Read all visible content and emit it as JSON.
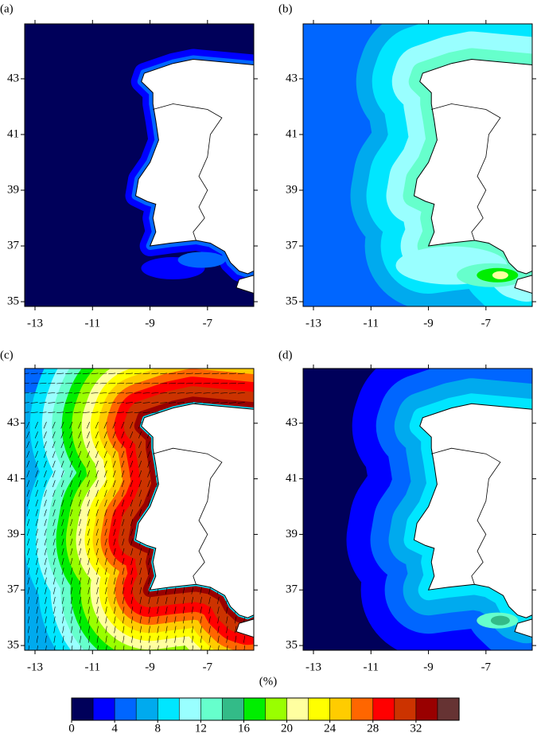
{
  "panels": [
    {
      "label": "(a)",
      "xlim": [
        -13.36,
        -5.39
      ],
      "ylim": [
        34.83,
        44.97
      ],
      "xticks": [
        -13,
        -11,
        -9,
        -7
      ],
      "yticks": [
        35,
        37,
        39,
        41,
        43
      ]
    },
    {
      "label": "(b)",
      "xlim": [
        -13.36,
        -5.39
      ],
      "ylim": [
        34.83,
        44.97
      ],
      "xticks": [
        -13,
        -11,
        -9,
        -7
      ],
      "yticks": [
        35,
        37,
        39,
        41,
        43
      ]
    },
    {
      "label": "(c)",
      "xlim": [
        -13.36,
        -5.39
      ],
      "ylim": [
        34.83,
        44.97
      ],
      "xticks": [
        -13,
        -11,
        -9,
        -7
      ],
      "yticks": [
        35,
        37,
        39,
        41,
        43
      ]
    },
    {
      "label": "(d)",
      "xlim": [
        -13.36,
        -5.39
      ],
      "ylim": [
        34.83,
        44.97
      ],
      "xticks": [
        -13,
        -11,
        -9,
        -7
      ],
      "yticks": [
        35,
        37,
        39,
        41,
        43
      ]
    }
  ],
  "colorbar": {
    "label": "(%)",
    "lim": [
      0,
      36
    ],
    "ticks": [
      0,
      4,
      8,
      12,
      16,
      20,
      24,
      28,
      32
    ],
    "colors": [
      "#00005a",
      "#0000ff",
      "#0066ff",
      "#00aaee",
      "#00e6ff",
      "#99ffff",
      "#66ffcc",
      "#33bb88",
      "#00ee00",
      "#99ff00",
      "#ffffa0",
      "#ffff00",
      "#ffcc00",
      "#ff6600",
      "#ff0000",
      "#cc3300",
      "#990000",
      "#663333"
    ]
  }
}
